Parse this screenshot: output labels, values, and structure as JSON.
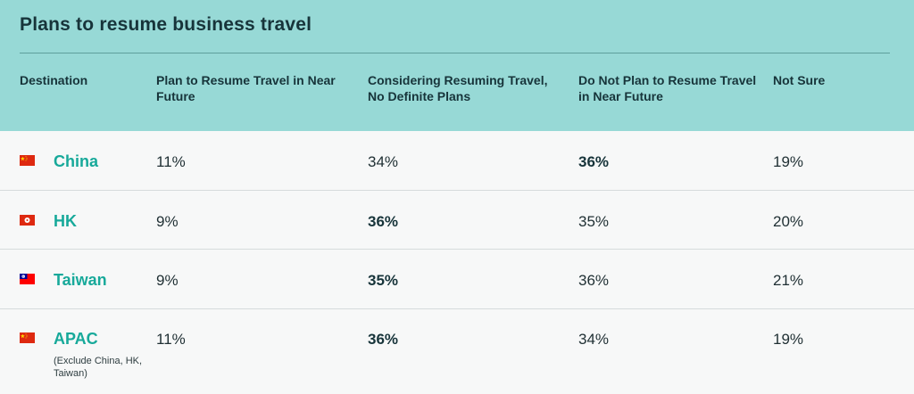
{
  "chart_data": {
    "type": "table",
    "title": "Plans to resume business travel",
    "columns": [
      "Destination",
      "Plan to Resume Travel in Near Future",
      "Considering Resuming Travel, No Definite Plans",
      "Do Not Plan to Resume Travel in Near Future",
      "Not Sure"
    ],
    "rows": [
      {
        "destination": "China",
        "note": "",
        "flag": "china-flag-icon",
        "values": [
          "11%",
          "34%",
          "36%",
          "19%"
        ],
        "bold": [
          false,
          false,
          true,
          false
        ]
      },
      {
        "destination": "HK",
        "note": "",
        "flag": "hong-kong-flag-icon",
        "values": [
          "9%",
          "36%",
          "35%",
          "20%"
        ],
        "bold": [
          false,
          true,
          false,
          false
        ]
      },
      {
        "destination": "Taiwan",
        "note": "",
        "flag": "taiwan-flag-icon",
        "values": [
          "9%",
          "35%",
          "36%",
          "21%"
        ],
        "bold": [
          false,
          true,
          false,
          false
        ]
      },
      {
        "destination": "APAC",
        "note": "(Exclude China, HK, Taiwan)",
        "flag": "china-flag-icon",
        "values": [
          "11%",
          "36%",
          "34%",
          "19%"
        ],
        "bold": [
          false,
          true,
          false,
          false
        ]
      }
    ]
  },
  "colors": {
    "header_bg": "#97d9d6",
    "destination_text": "#17a99a",
    "row_bg": "#f7f8f8"
  }
}
